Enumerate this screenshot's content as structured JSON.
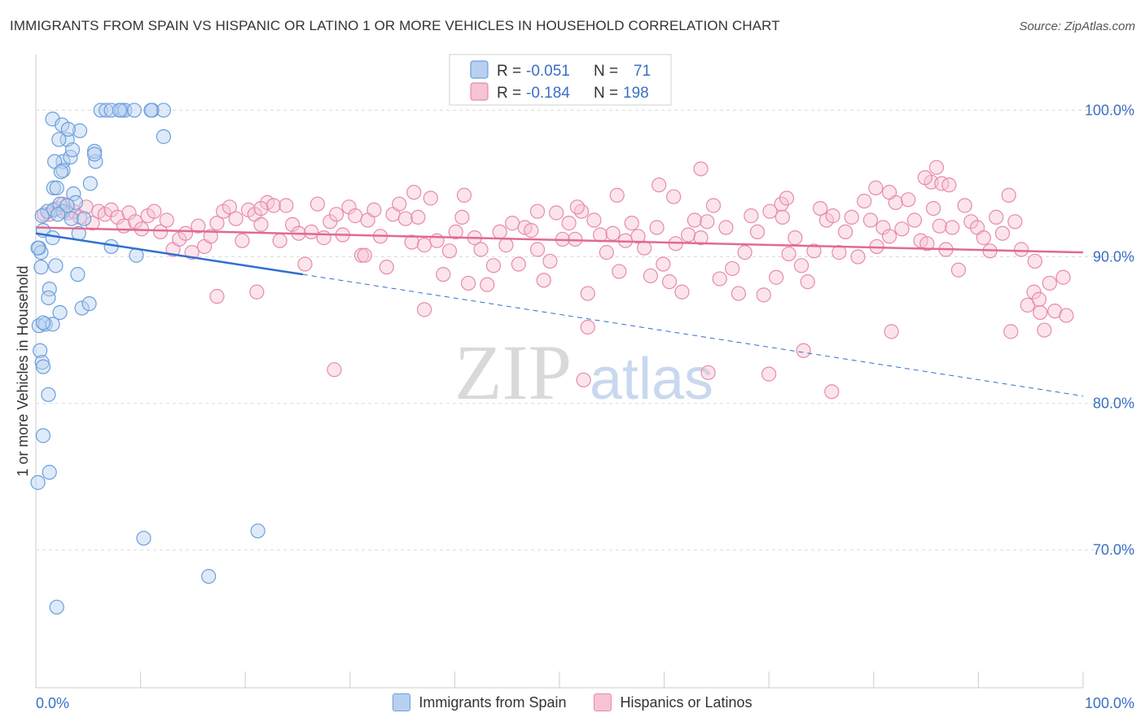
{
  "header": {
    "title": "IMMIGRANTS FROM SPAIN VS HISPANIC OR LATINO 1 OR MORE VEHICLES IN HOUSEHOLD CORRELATION CHART",
    "source": "Source: ZipAtlas.com"
  },
  "watermark": {
    "zip": "ZIP",
    "atlas": "atlas"
  },
  "colors": {
    "spain": "#6a9fdd",
    "spain_fill": "#b7d0f0",
    "spain_line": "#2f6fd0",
    "latino": "#e88aa9",
    "latino_fill": "#f6c4d4",
    "latino_line": "#e06a92",
    "value_text": "#3a6fc4"
  },
  "stats_legend": {
    "rows": [
      {
        "r_label": "R =",
        "r_value": "-0.051",
        "n_label": "N =",
        "n_value": "71"
      },
      {
        "r_label": "R =",
        "r_value": "-0.184",
        "n_label": "N =",
        "n_value": "198"
      }
    ]
  },
  "legend": {
    "spain_label": "Immigrants from Spain",
    "latino_label": "Hispanics or Latinos"
  },
  "chart_data": {
    "type": "scatter",
    "title": "IMMIGRANTS FROM SPAIN VS HISPANIC OR LATINO 1 OR MORE VEHICLES IN HOUSEHOLD CORRELATION CHART",
    "xlabel": "",
    "ylabel": "1 or more Vehicles in Household",
    "xlim": [
      0,
      100
    ],
    "ylim": [
      60.6,
      103.8
    ],
    "x_tick_labels": [
      "0.0%",
      "100.0%"
    ],
    "y_ticks": [
      70,
      80,
      90,
      100
    ],
    "y_tick_labels": [
      "70.0%",
      "80.0%",
      "90.0%",
      "100.0%"
    ],
    "grid": "horizontal dashed",
    "legend_position": "bottom",
    "series": [
      {
        "name": "Immigrants from Spain",
        "r": -0.051,
        "n": 71,
        "trend": {
          "x0": 0,
          "y0": 91.6,
          "x1": 25.5,
          "y1": 88.8,
          "dashed_to_x": 100,
          "dashed_to_y": 80.5
        },
        "points": [
          [
            0.3,
            90.6
          ],
          [
            0.5,
            89.3
          ],
          [
            0.3,
            85.3
          ],
          [
            0.4,
            83.6
          ],
          [
            0.6,
            82.8
          ],
          [
            0.7,
            82.5
          ],
          [
            1.2,
            80.6
          ],
          [
            0.7,
            77.8
          ],
          [
            1.3,
            75.3
          ],
          [
            0.2,
            74.6
          ],
          [
            2.0,
            66.1
          ],
          [
            10.3,
            70.8
          ],
          [
            16.5,
            68.2
          ],
          [
            21.2,
            71.3
          ],
          [
            0.7,
            91.8
          ],
          [
            1.6,
            91.3
          ],
          [
            0.5,
            90.3
          ],
          [
            1.1,
            93.1
          ],
          [
            1.7,
            93.2
          ],
          [
            2.3,
            93.6
          ],
          [
            2.6,
            93.1
          ],
          [
            3.4,
            92.6
          ],
          [
            4.1,
            91.6
          ],
          [
            4.0,
            88.8
          ],
          [
            1.9,
            89.4
          ],
          [
            1.3,
            87.8
          ],
          [
            1.2,
            87.2
          ],
          [
            4.4,
            86.5
          ],
          [
            5.1,
            86.8
          ],
          [
            2.3,
            86.2
          ],
          [
            0.9,
            85.4
          ],
          [
            1.6,
            85.4
          ],
          [
            0.7,
            85.5
          ],
          [
            2.6,
            96.5
          ],
          [
            1.8,
            96.5
          ],
          [
            3.3,
            96.8
          ],
          [
            4.2,
            98.6
          ],
          [
            3.0,
            98.0
          ],
          [
            2.2,
            98.0
          ],
          [
            1.6,
            99.4
          ],
          [
            2.5,
            99.0
          ],
          [
            3.1,
            98.7
          ],
          [
            5.7,
            96.5
          ],
          [
            5.6,
            97.2
          ],
          [
            6.2,
            100.0
          ],
          [
            6.7,
            100.0
          ],
          [
            7.2,
            100.0
          ],
          [
            8.2,
            100.0
          ],
          [
            8.5,
            100.0
          ],
          [
            11.1,
            100.0
          ],
          [
            12.2,
            100.0
          ],
          [
            8.0,
            100.0
          ],
          [
            9.4,
            100.0
          ],
          [
            3.5,
            97.3
          ],
          [
            2.6,
            95.9
          ],
          [
            2.4,
            95.8
          ],
          [
            1.7,
            94.7
          ],
          [
            3.6,
            94.3
          ],
          [
            5.2,
            95.0
          ],
          [
            3.8,
            93.7
          ],
          [
            4.6,
            92.6
          ],
          [
            9.6,
            90.1
          ],
          [
            7.2,
            90.7
          ],
          [
            2.0,
            94.7
          ],
          [
            3.0,
            93.5
          ],
          [
            2.1,
            92.9
          ],
          [
            0.6,
            92.8
          ],
          [
            0.2,
            90.6
          ],
          [
            12.2,
            98.2
          ],
          [
            5.6,
            97.0
          ],
          [
            11.0,
            100.0
          ]
        ]
      },
      {
        "name": "Hispanics or Latinos",
        "r": -0.184,
        "n": 198,
        "trend": {
          "x0": 0,
          "y0": 92.0,
          "x1": 100,
          "y1": 90.3
        },
        "points": [
          [
            0.8,
            92.9
          ],
          [
            1.3,
            92.9
          ],
          [
            2.0,
            93.3
          ],
          [
            2.6,
            93.6
          ],
          [
            3.1,
            93.0
          ],
          [
            3.6,
            93.1
          ],
          [
            4.2,
            92.7
          ],
          [
            4.8,
            93.4
          ],
          [
            5.4,
            92.3
          ],
          [
            6.0,
            93.1
          ],
          [
            6.6,
            92.9
          ],
          [
            7.2,
            93.2
          ],
          [
            7.8,
            92.7
          ],
          [
            8.4,
            92.1
          ],
          [
            8.9,
            93.0
          ],
          [
            9.5,
            92.4
          ],
          [
            10.1,
            91.9
          ],
          [
            10.7,
            92.8
          ],
          [
            11.3,
            93.1
          ],
          [
            11.9,
            91.7
          ],
          [
            12.5,
            92.5
          ],
          [
            13.1,
            90.5
          ],
          [
            13.7,
            91.2
          ],
          [
            14.3,
            91.6
          ],
          [
            14.9,
            90.3
          ],
          [
            15.5,
            92.1
          ],
          [
            16.1,
            90.7
          ],
          [
            16.7,
            91.4
          ],
          [
            17.3,
            92.3
          ],
          [
            17.9,
            93.1
          ],
          [
            18.5,
            93.4
          ],
          [
            19.1,
            92.6
          ],
          [
            19.7,
            91.1
          ],
          [
            20.3,
            93.2
          ],
          [
            20.9,
            92.9
          ],
          [
            21.5,
            92.2
          ],
          [
            22.1,
            93.7
          ],
          [
            22.7,
            93.5
          ],
          [
            23.3,
            91.1
          ],
          [
            23.9,
            93.5
          ],
          [
            24.5,
            92.2
          ],
          [
            25.1,
            91.6
          ],
          [
            25.7,
            89.5
          ],
          [
            26.3,
            91.7
          ],
          [
            26.9,
            93.6
          ],
          [
            27.5,
            91.3
          ],
          [
            28.1,
            92.4
          ],
          [
            28.7,
            92.9
          ],
          [
            29.3,
            91.5
          ],
          [
            29.9,
            93.4
          ],
          [
            30.5,
            92.8
          ],
          [
            31.1,
            90.1
          ],
          [
            31.7,
            92.5
          ],
          [
            32.3,
            93.2
          ],
          [
            32.9,
            91.4
          ],
          [
            33.5,
            89.3
          ],
          [
            34.1,
            92.9
          ],
          [
            34.7,
            93.6
          ],
          [
            35.3,
            92.6
          ],
          [
            35.9,
            91.0
          ],
          [
            36.5,
            92.7
          ],
          [
            37.1,
            90.8
          ],
          [
            37.7,
            94.0
          ],
          [
            38.3,
            91.1
          ],
          [
            38.9,
            88.8
          ],
          [
            39.5,
            90.4
          ],
          [
            40.1,
            91.7
          ],
          [
            40.7,
            92.7
          ],
          [
            41.3,
            88.2
          ],
          [
            41.9,
            91.3
          ],
          [
            42.5,
            90.5
          ],
          [
            43.1,
            88.1
          ],
          [
            43.7,
            89.4
          ],
          [
            44.3,
            91.7
          ],
          [
            44.9,
            90.8
          ],
          [
            45.5,
            92.3
          ],
          [
            46.1,
            89.5
          ],
          [
            46.7,
            92.0
          ],
          [
            47.3,
            91.8
          ],
          [
            47.9,
            90.5
          ],
          [
            48.5,
            88.4
          ],
          [
            49.1,
            89.7
          ],
          [
            49.7,
            93.0
          ],
          [
            50.3,
            91.2
          ],
          [
            50.9,
            92.3
          ],
          [
            51.5,
            91.2
          ],
          [
            52.1,
            93.1
          ],
          [
            52.7,
            87.5
          ],
          [
            53.3,
            92.5
          ],
          [
            53.9,
            91.5
          ],
          [
            54.5,
            90.3
          ],
          [
            55.1,
            91.6
          ],
          [
            55.7,
            89.0
          ],
          [
            56.3,
            91.1
          ],
          [
            56.9,
            92.3
          ],
          [
            57.5,
            91.4
          ],
          [
            58.1,
            90.6
          ],
          [
            58.7,
            88.7
          ],
          [
            59.3,
            92.0
          ],
          [
            59.9,
            89.5
          ],
          [
            60.5,
            88.3
          ],
          [
            61.1,
            90.9
          ],
          [
            61.7,
            87.6
          ],
          [
            62.3,
            91.5
          ],
          [
            62.9,
            92.5
          ],
          [
            63.5,
            91.3
          ],
          [
            64.1,
            92.4
          ],
          [
            64.7,
            93.5
          ],
          [
            65.3,
            88.5
          ],
          [
            65.9,
            92.0
          ],
          [
            66.5,
            89.2
          ],
          [
            67.1,
            87.5
          ],
          [
            67.7,
            90.3
          ],
          [
            68.3,
            92.8
          ],
          [
            68.9,
            91.7
          ],
          [
            69.5,
            87.4
          ],
          [
            70.1,
            93.1
          ],
          [
            70.7,
            88.6
          ],
          [
            71.3,
            92.7
          ],
          [
            71.9,
            90.2
          ],
          [
            72.5,
            91.3
          ],
          [
            73.1,
            89.4
          ],
          [
            73.7,
            88.3
          ],
          [
            74.3,
            90.4
          ],
          [
            74.9,
            93.3
          ],
          [
            75.5,
            92.5
          ],
          [
            76.1,
            92.8
          ],
          [
            76.7,
            90.3
          ],
          [
            77.3,
            91.7
          ],
          [
            77.9,
            92.7
          ],
          [
            78.5,
            90.0
          ],
          [
            79.1,
            93.8
          ],
          [
            79.7,
            92.5
          ],
          [
            80.3,
            90.7
          ],
          [
            80.9,
            92.0
          ],
          [
            81.5,
            91.4
          ],
          [
            82.1,
            93.7
          ],
          [
            82.7,
            91.9
          ],
          [
            83.3,
            93.9
          ],
          [
            83.9,
            92.5
          ],
          [
            84.5,
            91.1
          ],
          [
            85.1,
            90.9
          ],
          [
            85.7,
            93.3
          ],
          [
            86.3,
            92.1
          ],
          [
            86.9,
            90.5
          ],
          [
            87.5,
            92.0
          ],
          [
            88.1,
            89.1
          ],
          [
            88.7,
            93.5
          ],
          [
            89.3,
            92.4
          ],
          [
            89.9,
            92.0
          ],
          [
            90.5,
            91.3
          ],
          [
            91.1,
            90.4
          ],
          [
            91.7,
            92.7
          ],
          [
            92.3,
            91.6
          ],
          [
            92.9,
            94.2
          ],
          [
            93.5,
            92.4
          ],
          [
            94.1,
            90.5
          ],
          [
            94.7,
            86.7
          ],
          [
            95.3,
            87.6
          ],
          [
            95.9,
            86.2
          ],
          [
            96.3,
            85.0
          ],
          [
            96.8,
            88.2
          ],
          [
            95.8,
            87.1
          ],
          [
            97.3,
            86.3
          ],
          [
            98.4,
            86.0
          ],
          [
            31.4,
            90.1
          ],
          [
            40.9,
            94.2
          ],
          [
            55.5,
            94.2
          ],
          [
            59.5,
            94.9
          ],
          [
            71.2,
            93.6
          ],
          [
            81.5,
            94.4
          ],
          [
            85.5,
            95.1
          ],
          [
            86.5,
            95.0
          ],
          [
            87.2,
            94.9
          ],
          [
            84.9,
            95.4
          ],
          [
            86.0,
            96.1
          ],
          [
            63.5,
            96.0
          ],
          [
            36.1,
            94.4
          ],
          [
            47.9,
            93.1
          ],
          [
            51.7,
            93.4
          ],
          [
            60.9,
            94.1
          ],
          [
            71.7,
            94.0
          ],
          [
            80.2,
            94.7
          ],
          [
            21.5,
            93.3
          ],
          [
            17.3,
            87.3
          ],
          [
            28.5,
            82.3
          ],
          [
            37.1,
            86.4
          ],
          [
            52.3,
            81.6
          ],
          [
            52.7,
            85.2
          ],
          [
            64.2,
            82.1
          ],
          [
            70.0,
            82.0
          ],
          [
            73.3,
            83.6
          ],
          [
            76.0,
            80.8
          ],
          [
            81.7,
            84.9
          ],
          [
            93.1,
            84.9
          ],
          [
            21.1,
            87.6
          ],
          [
            95.4,
            89.7
          ],
          [
            98.1,
            88.6
          ]
        ]
      }
    ]
  }
}
